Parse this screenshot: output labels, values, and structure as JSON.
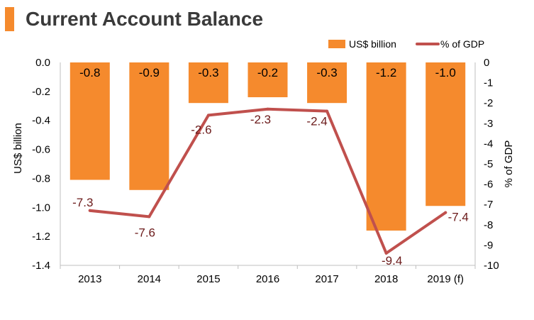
{
  "title": "Current Account Balance",
  "colors": {
    "accent": "#f58a2d",
    "bar": "#f58a2d",
    "line": "#c0504d",
    "line_label": "#6b1a1a"
  },
  "chart_data": {
    "type": "bar",
    "categories": [
      "2013",
      "2014",
      "2015",
      "2016",
      "2017",
      "2018",
      "2019 (f)"
    ],
    "series": [
      {
        "name": "US$ billion",
        "type": "bar",
        "axis": "left",
        "values": [
          -0.8,
          -0.9,
          -0.3,
          -0.2,
          -0.3,
          -1.2,
          -1.0
        ],
        "value_labels": [
          "-0.8",
          "-0.9",
          "-0.3",
          "-0.2",
          "-0.3",
          "-1.2",
          "-1.0"
        ],
        "plot_values": [
          -0.81,
          -0.88,
          -0.28,
          -0.24,
          -0.28,
          -1.16,
          -0.99
        ]
      },
      {
        "name": "% of GDP",
        "type": "line",
        "axis": "right",
        "values": [
          -7.3,
          -7.6,
          -2.6,
          -2.3,
          -2.4,
          -9.4,
          -7.4
        ],
        "value_labels": [
          "-7.3",
          "-7.6",
          "-2.6",
          "-2.3",
          "-2.4",
          "-9.4",
          "-7.4"
        ]
      }
    ],
    "ylabel": "US$ billion",
    "y2label": "% of GDP",
    "ylim": [
      -1.4,
      0.0
    ],
    "y2lim": [
      -10,
      0
    ],
    "yticks": [
      "0.0",
      "-0.2",
      "-0.4",
      "-0.6",
      "-0.8",
      "-1.0",
      "-1.2",
      "-1.4"
    ],
    "y2ticks": [
      "0",
      "-1",
      "-2",
      "-3",
      "-4",
      "-5",
      "-6",
      "-7",
      "-8",
      "-9",
      "-10"
    ],
    "legend_position": "top-right",
    "grid": false
  }
}
